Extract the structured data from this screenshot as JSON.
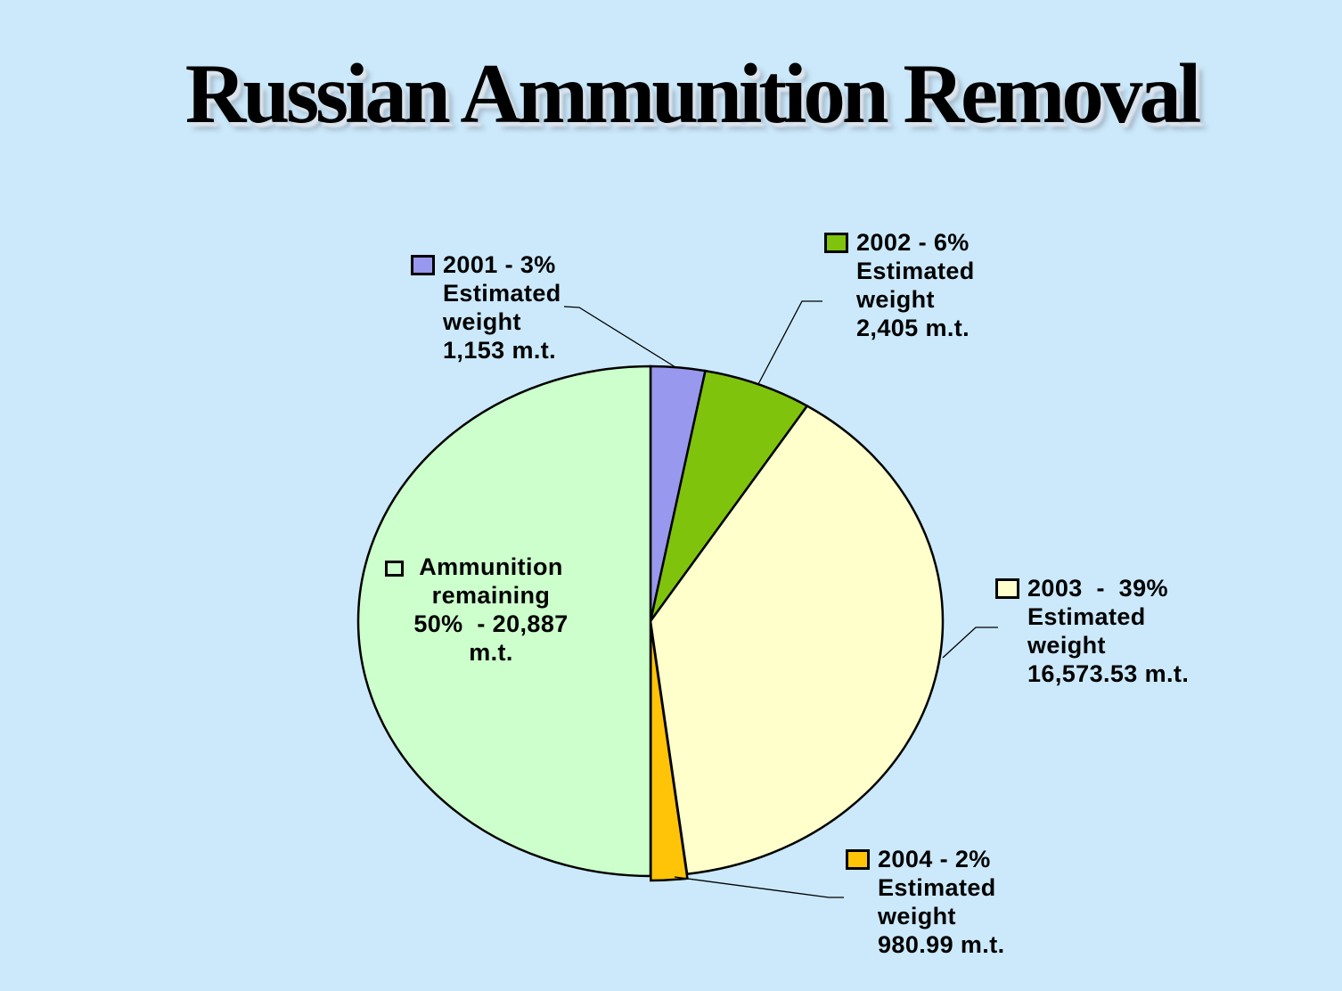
{
  "chart_data": {
    "type": "pie",
    "title": "Russian Ammunition Removal",
    "start_angle_deg": 0,
    "direction": "clockwise",
    "background_color": "#CBE9FB",
    "labels_style": "callouts_with_leader_lines",
    "slices": [
      {
        "name": "2001",
        "percent": 3,
        "weight_mt": 1153,
        "color": "#9898EE",
        "marker_fill": "#9898EE",
        "callout": "2001 - 3%\nEstimated\nweight\n1,153 m.t."
      },
      {
        "name": "2002",
        "percent": 6,
        "weight_mt": 2405,
        "color": "#7FC30D",
        "marker_fill": "#7FC30D",
        "callout": "2002 - 6%\nEstimated\nweight\n2,405 m.t."
      },
      {
        "name": "2003",
        "percent": 39,
        "weight_mt": 16573.53,
        "color": "#FFFFCC",
        "marker_fill": "#FFFFCC",
        "callout": "2003  -  39%\nEstimated\nweight\n16,573.53 m.t."
      },
      {
        "name": "2004",
        "percent": 2,
        "weight_mt": 980.99,
        "color": "#FFC408",
        "marker_fill": "#FFC408",
        "callout": "2004 - 2%\nEstimated\nweight\n980.99 m.t."
      },
      {
        "name": "Ammunition remaining",
        "percent": 50,
        "weight_mt": 20887,
        "color": "#CCFFCC",
        "marker_fill": "none",
        "callout": "Ammunition\nremaining\n50%  - 20,887\nm.t."
      }
    ]
  }
}
